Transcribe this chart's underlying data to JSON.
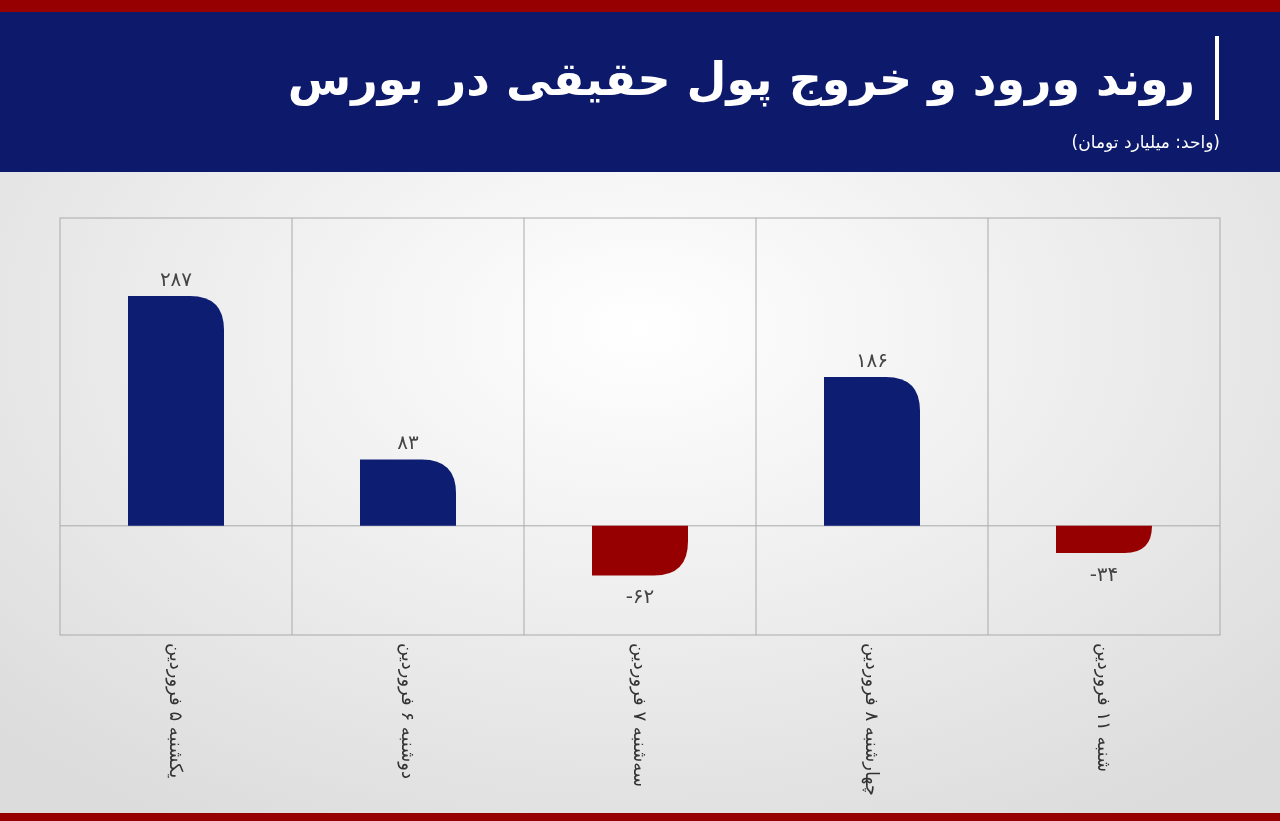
{
  "chart_data": {
    "type": "bar",
    "title": "روند ورود و خروج پول حقیقی در بورس",
    "subtitle": "(واحد: میلیارد تومان)",
    "categories": [
      "یکشنبه ۵ فروردین",
      "دوشنبه ۶ فروردین",
      "سه‌شنبه ۷ فروردین",
      "چهارشنبه ۸ فروردین",
      "شنبه ۱۱ فروردین"
    ],
    "values": [
      287,
      83,
      -62,
      186,
      -34
    ],
    "colors": [
      "#0c1d72",
      "#0c1d72",
      "#970000",
      "#0c1d72",
      "#970000"
    ],
    "value_labels": [
      "۲۸۷",
      "۸۳",
      "-۶۲",
      "۱۸۶",
      "-۳۴"
    ]
  }
}
